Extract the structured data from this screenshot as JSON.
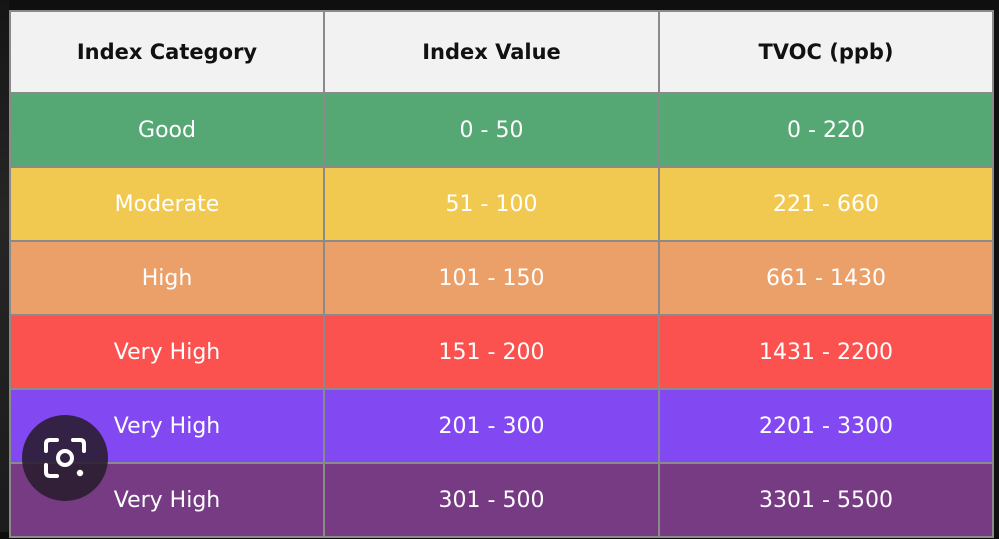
{
  "table": {
    "headers": [
      "Index Category",
      "Index Value",
      "TVOC (ppb)"
    ],
    "rows": [
      {
        "category": "Good",
        "index_value": "0 - 50",
        "tvoc": "0 - 220",
        "color": "#55a873"
      },
      {
        "category": "Moderate",
        "index_value": "51 - 100",
        "tvoc": "221 - 660",
        "color": "#f2c950"
      },
      {
        "category": "High",
        "index_value": "101 - 150",
        "tvoc": "661 - 1430",
        "color": "#eba06a"
      },
      {
        "category": "Very High",
        "index_value": "151 - 200",
        "tvoc": "1431 - 2200",
        "color": "#fb5250"
      },
      {
        "category": "Very High",
        "index_value": "201 - 300",
        "tvoc": "2201 - 3300",
        "color": "#8248f2"
      },
      {
        "category": "Very High",
        "index_value": "301 - 500",
        "tvoc": "3301 - 5500",
        "color": "#773b84"
      }
    ]
  },
  "overlay": {
    "icon": "camera-lens-icon"
  }
}
